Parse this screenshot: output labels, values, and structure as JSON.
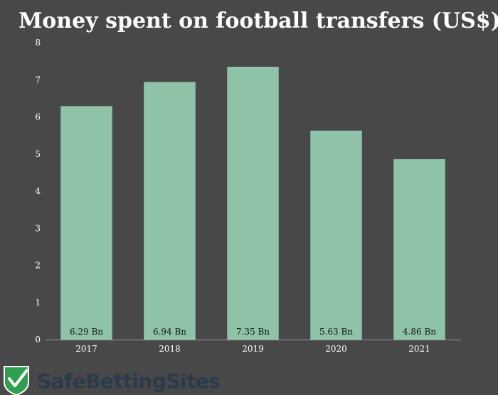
{
  "chart_data": {
    "type": "bar",
    "title": "Money spent on football transfers (US$)",
    "xlabel": "",
    "ylabel": "",
    "categories": [
      "2017",
      "2018",
      "2019",
      "2020",
      "2021"
    ],
    "values": [
      6.29,
      6.94,
      7.35,
      5.63,
      4.86
    ],
    "data_labels": [
      "6.29 Bn",
      "6.94 Bn",
      "7.35 Bn",
      "5.63 Bn",
      "4.86 Bn"
    ],
    "ylim": [
      0,
      8
    ],
    "yticks": [
      0,
      1,
      2,
      3,
      4,
      5,
      6,
      7,
      8
    ],
    "grid": false,
    "legend": "none"
  },
  "colors": {
    "background": "#484848",
    "bar": "#8ec3a7",
    "axis_line": "#9a9a9a",
    "logo_shield": "#2e9e4f"
  },
  "brand": {
    "name": "SafeBettingSites",
    "icon": "shield-check-icon"
  }
}
